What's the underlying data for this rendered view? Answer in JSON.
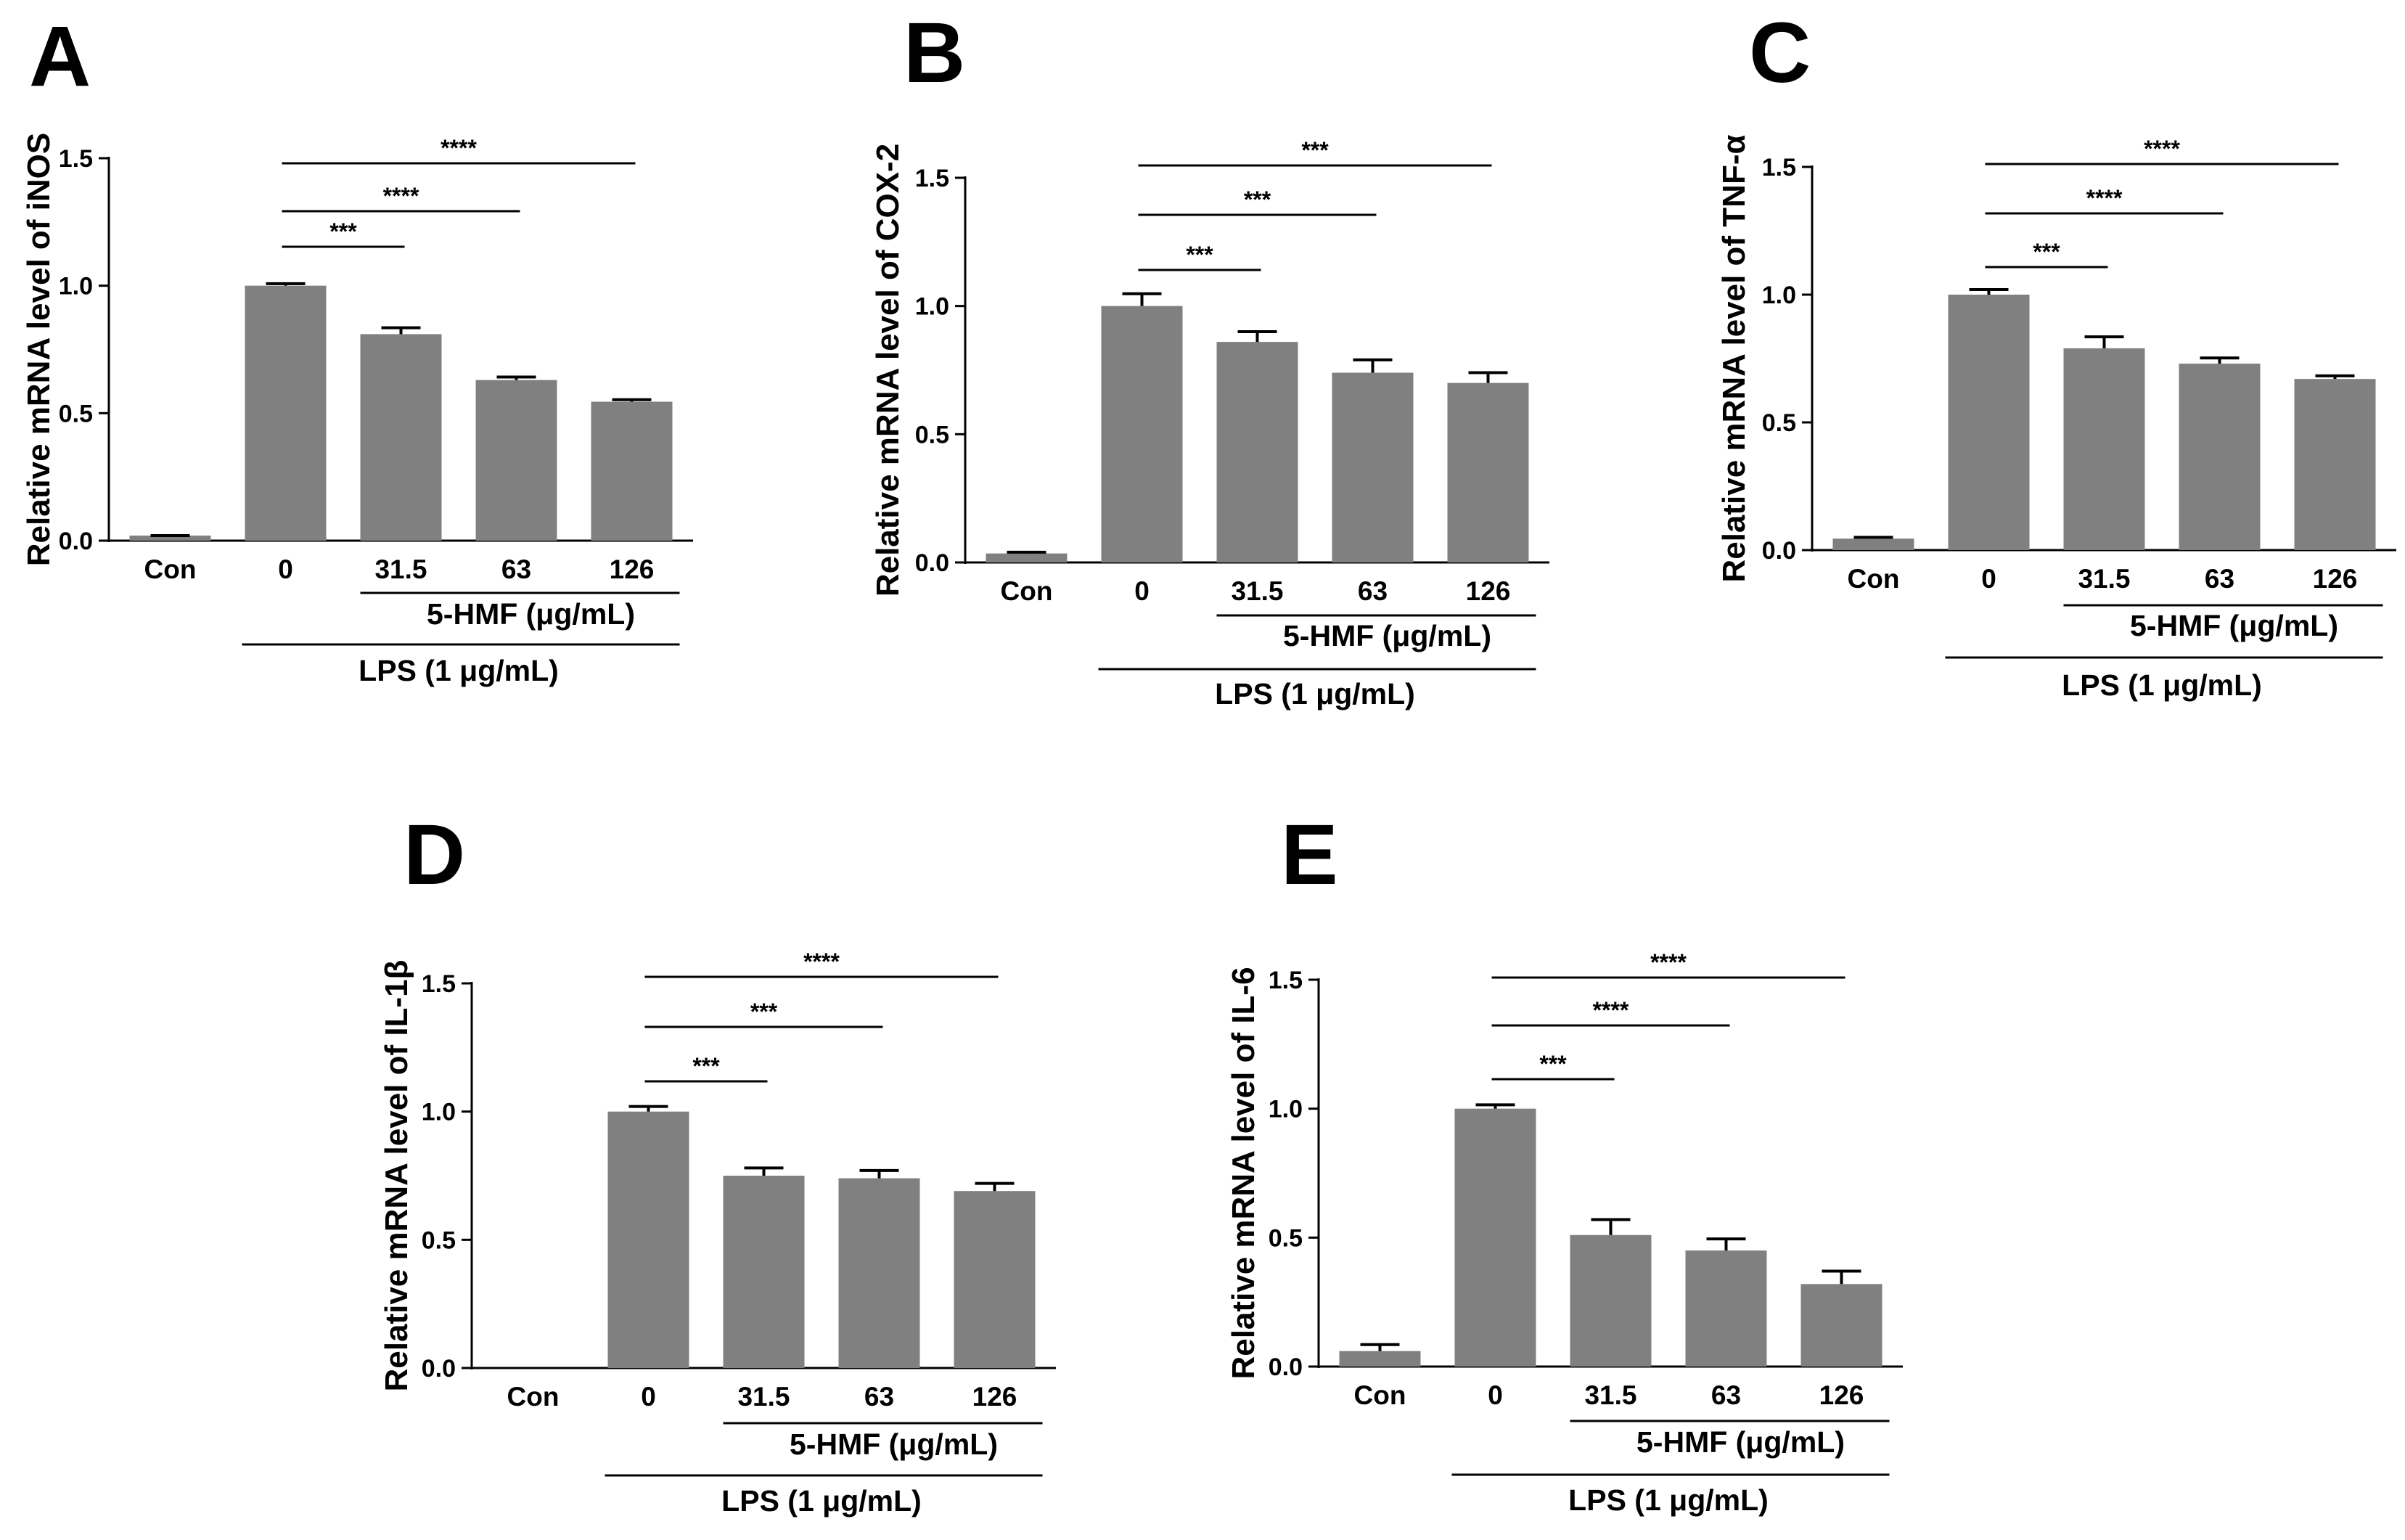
{
  "figure": {
    "bar_color": "#808080",
    "axis_color": "#000000"
  },
  "chart_data": [
    {
      "panel": "A",
      "type": "bar",
      "ylabel": "Relative mRNA level of iNOS",
      "categories": [
        "Con",
        "0",
        "31.5",
        "63",
        "126"
      ],
      "values": [
        0.02,
        1.0,
        0.81,
        0.63,
        0.545
      ],
      "errors": [
        0.0,
        0.008,
        0.025,
        0.012,
        0.008
      ],
      "ylim": [
        0,
        1.5
      ],
      "yticks": [
        "0.0",
        "0.5",
        "1.0",
        "1.5"
      ],
      "group_labels": {
        "inner": "5-HMF (μg/mL)",
        "outer": "LPS (1 μg/mL)"
      },
      "significance": [
        {
          "from": "0",
          "to": "31.5",
          "label": "***"
        },
        {
          "from": "0",
          "to": "63",
          "label": "****"
        },
        {
          "from": "0",
          "to": "126",
          "label": "****"
        }
      ]
    },
    {
      "panel": "B",
      "type": "bar",
      "ylabel": "Relative mRNA level of COX-2",
      "categories": [
        "Con",
        "0",
        "31.5",
        "63",
        "126"
      ],
      "values": [
        0.035,
        1.0,
        0.86,
        0.74,
        0.7
      ],
      "errors": [
        0.005,
        0.048,
        0.04,
        0.05,
        0.04
      ],
      "ylim": [
        0,
        1.5
      ],
      "yticks": [
        "0.0",
        "0.5",
        "1.0",
        "1.5"
      ],
      "group_labels": {
        "inner": "5-HMF (μg/mL)",
        "outer": "LPS (1 μg/mL)"
      },
      "significance": [
        {
          "from": "0",
          "to": "31.5",
          "label": "***"
        },
        {
          "from": "0",
          "to": "63",
          "label": "***"
        },
        {
          "from": "0",
          "to": "126",
          "label": "***"
        }
      ]
    },
    {
      "panel": "C",
      "type": "bar",
      "ylabel": "Relative mRNA level of TNF-α",
      "categories": [
        "Con",
        "0",
        "31.5",
        "63",
        "126"
      ],
      "values": [
        0.045,
        1.0,
        0.79,
        0.73,
        0.67
      ],
      "errors": [
        0.005,
        0.02,
        0.045,
        0.022,
        0.012
      ],
      "ylim": [
        0,
        1.5
      ],
      "yticks": [
        "0.0",
        "0.5",
        "1.0",
        "1.5"
      ],
      "group_labels": {
        "inner": "5-HMF (μg/mL)",
        "outer": "LPS (1 μg/mL)"
      },
      "significance": [
        {
          "from": "0",
          "to": "31.5",
          "label": "***"
        },
        {
          "from": "0",
          "to": "63",
          "label": "****"
        },
        {
          "from": "0",
          "to": "126",
          "label": "****"
        }
      ]
    },
    {
      "panel": "D",
      "type": "bar",
      "ylabel": "Relative mRNA level of IL-1β",
      "categories": [
        "Con",
        "0",
        "31.5",
        "63",
        "126"
      ],
      "values": [
        0.0,
        1.0,
        0.75,
        0.74,
        0.69
      ],
      "errors": [
        0.0,
        0.02,
        0.03,
        0.03,
        0.03
      ],
      "ylim": [
        0,
        1.5
      ],
      "yticks": [
        "0.0",
        "0.5",
        "1.0",
        "1.5"
      ],
      "group_labels": {
        "inner": "5-HMF (μg/mL)",
        "outer": "LPS (1 μg/mL)"
      },
      "significance": [
        {
          "from": "0",
          "to": "31.5",
          "label": "***"
        },
        {
          "from": "0",
          "to": "63",
          "label": "***"
        },
        {
          "from": "0",
          "to": "126",
          "label": "****"
        }
      ]
    },
    {
      "panel": "E",
      "type": "bar",
      "ylabel": "Relative mRNA level of IL-6",
      "categories": [
        "Con",
        "0",
        "31.5",
        "63",
        "126"
      ],
      "values": [
        0.06,
        1.0,
        0.51,
        0.45,
        0.32
      ],
      "errors": [
        0.025,
        0.015,
        0.06,
        0.045,
        0.05
      ],
      "ylim": [
        0,
        1.5
      ],
      "yticks": [
        "0.0",
        "0.5",
        "1.0",
        "1.5"
      ],
      "group_labels": {
        "inner": "5-HMF (μg/mL)",
        "outer": "LPS (1 μg/mL)"
      },
      "significance": [
        {
          "from": "0",
          "to": "31.5",
          "label": "***"
        },
        {
          "from": "0",
          "to": "63",
          "label": "****"
        },
        {
          "from": "0",
          "to": "126",
          "label": "****"
        }
      ]
    }
  ]
}
